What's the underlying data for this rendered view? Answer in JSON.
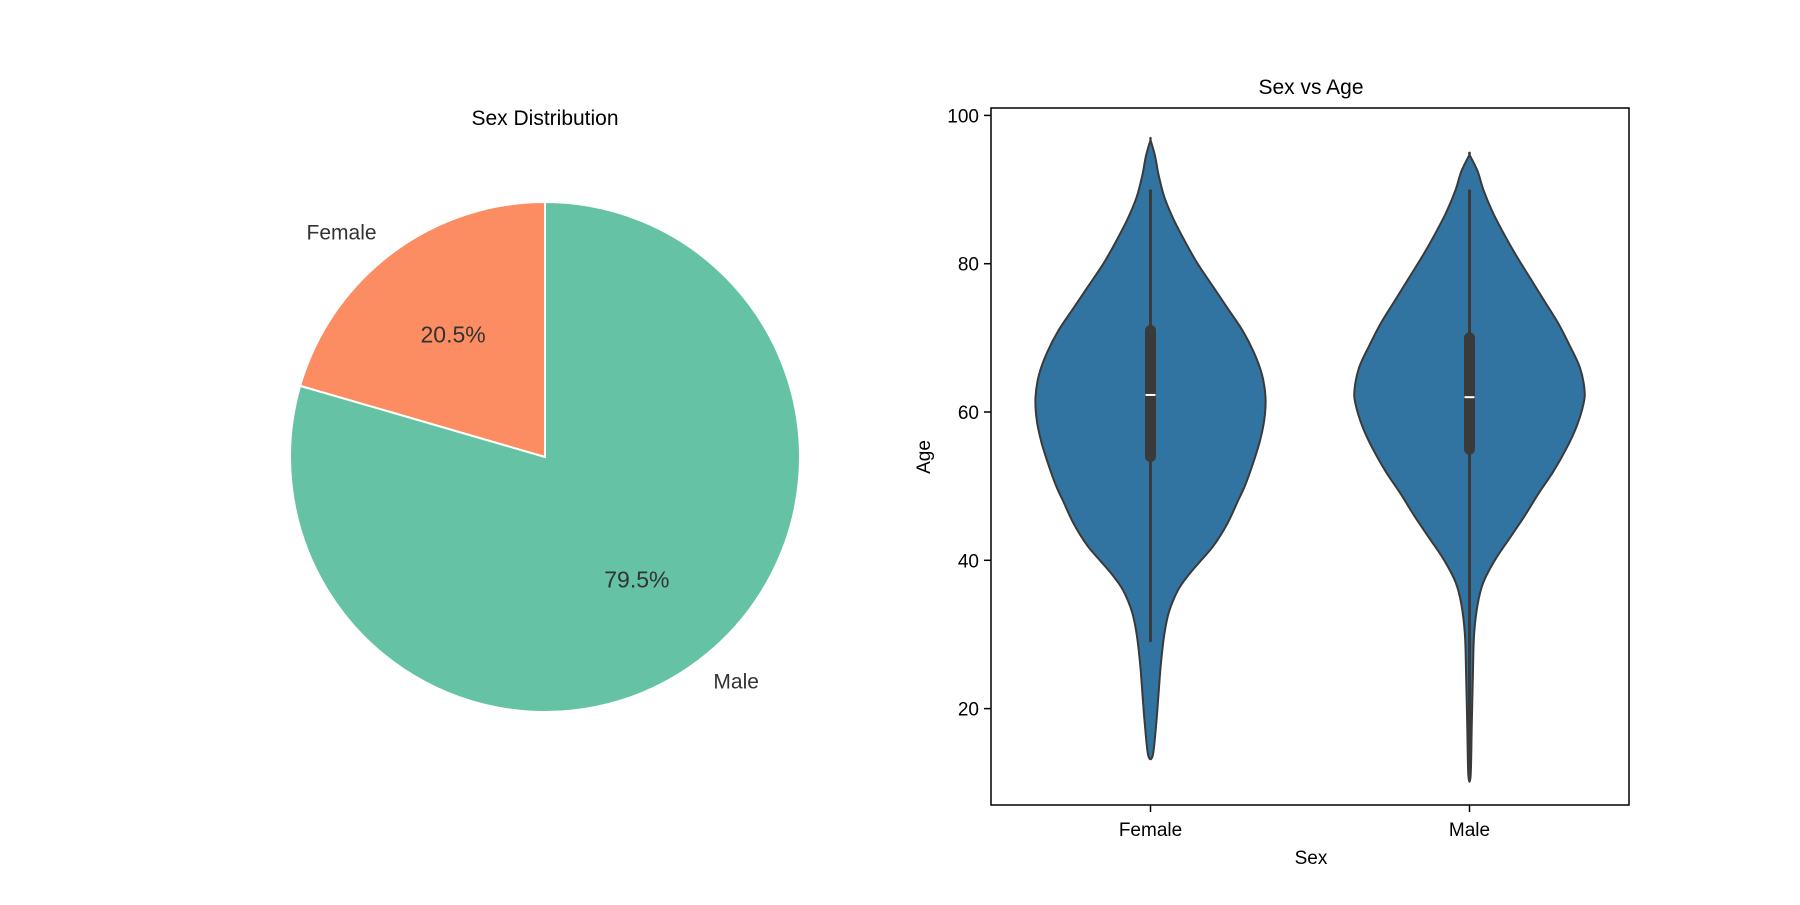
{
  "chart_data": [
    {
      "type": "pie",
      "title": "Sex Distribution",
      "categories": [
        "Female",
        "Male"
      ],
      "values": [
        20.5,
        79.5
      ],
      "value_labels": [
        "20.5%",
        "79.5%"
      ],
      "colors": [
        "#fc8d62",
        "#66c2a5"
      ],
      "start_angle_deg": 90,
      "direction": "counterclockwise"
    },
    {
      "type": "violin",
      "title": "Sex vs Age",
      "xlabel": "Sex",
      "ylabel": "Age",
      "categories": [
        "Female",
        "Male"
      ],
      "ylim": [
        7,
        101
      ],
      "yticks": [
        20,
        40,
        60,
        80,
        100
      ],
      "ytick_labels": [
        "20",
        "40",
        "60",
        "80",
        "100"
      ],
      "color": "#3274a1",
      "series": [
        {
          "category": "Female",
          "min": 29,
          "q1": 54,
          "median": 62.3,
          "q3": 71,
          "max": 90,
          "extent": [
            13.7,
            96.7
          ],
          "profile": [
            [
              13.7,
              0.02
            ],
            [
              18,
              0.05
            ],
            [
              22,
              0.07
            ],
            [
              26,
              0.09
            ],
            [
              30,
              0.12
            ],
            [
              33,
              0.16
            ],
            [
              36,
              0.24
            ],
            [
              38,
              0.33
            ],
            [
              40,
              0.44
            ],
            [
              42,
              0.55
            ],
            [
              45,
              0.67
            ],
            [
              48,
              0.76
            ],
            [
              50,
              0.82
            ],
            [
              53,
              0.89
            ],
            [
              56,
              0.95
            ],
            [
              59,
              0.99
            ],
            [
              62,
              1.0
            ],
            [
              65,
              0.97
            ],
            [
              68,
              0.9
            ],
            [
              71,
              0.8
            ],
            [
              74,
              0.67
            ],
            [
              77,
              0.54
            ],
            [
              80,
              0.41
            ],
            [
              83,
              0.3
            ],
            [
              86,
              0.2
            ],
            [
              89,
              0.12
            ],
            [
              92,
              0.07
            ],
            [
              94.5,
              0.04
            ],
            [
              96.7,
              0.0
            ]
          ]
        },
        {
          "category": "Male",
          "min": 11,
          "q1": 55,
          "median": 62,
          "q3": 70,
          "max": 90,
          "extent": [
            11,
            94.7
          ],
          "profile": [
            [
              11,
              0.01
            ],
            [
              18,
              0.02
            ],
            [
              25,
              0.03
            ],
            [
              30,
              0.04
            ],
            [
              34,
              0.07
            ],
            [
              37,
              0.12
            ],
            [
              40,
              0.22
            ],
            [
              43,
              0.35
            ],
            [
              46,
              0.48
            ],
            [
              49,
              0.6
            ],
            [
              52,
              0.73
            ],
            [
              55,
              0.84
            ],
            [
              58,
              0.93
            ],
            [
              61,
              0.99
            ],
            [
              63,
              1.0
            ],
            [
              66,
              0.96
            ],
            [
              69,
              0.87
            ],
            [
              72,
              0.77
            ],
            [
              75,
              0.65
            ],
            [
              78,
              0.53
            ],
            [
              81,
              0.41
            ],
            [
              84,
              0.3
            ],
            [
              87,
              0.2
            ],
            [
              90,
              0.12
            ],
            [
              92.5,
              0.07
            ],
            [
              94.7,
              0.0
            ]
          ]
        }
      ]
    }
  ]
}
